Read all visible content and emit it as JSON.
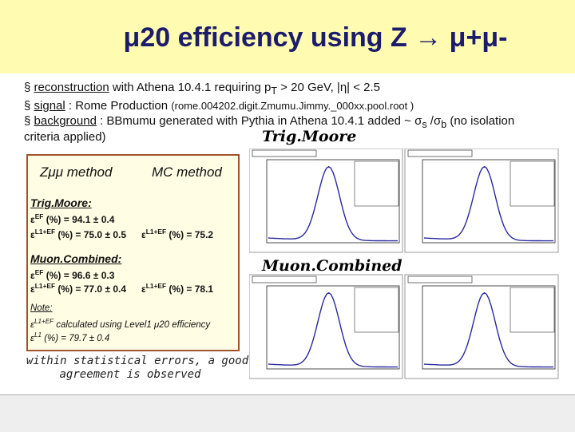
{
  "header": {
    "title": "μ20 efficiency using Z → μ+μ-"
  },
  "bullets": [
    {
      "marker": "§",
      "link": "reconstruction",
      "text": " with Athena 10.4.1 requiring p",
      "sub": "T",
      "rest": " > 20 GeV, |η| < 2.5"
    },
    {
      "marker": "§",
      "link": "signal",
      "text": " : Rome Production ",
      "small": "(rome.004202.digit.Zmumu.Jimmy._000xx.pool.root )"
    },
    {
      "marker": "§",
      "link": "background",
      "text": " : BBmumu generated with Pythia in Athena 10.4.1 added ~ σ",
      "sub": "s",
      "mid": " /σ",
      "sub2": "b",
      "rest": " (no isolation",
      "cont": "criteria applied)"
    }
  ],
  "plot_labels": {
    "top": "Trig.Moore",
    "bottom": "Muon.Combined"
  },
  "box": {
    "col1": "Zμμ method",
    "col2": "MC method",
    "sections": [
      {
        "heading": "Trig.Moore:",
        "rows": [
          {
            "eps": "ε",
            "sup": "EF",
            "text": " (%) = 94.1 ± 0.4"
          },
          {
            "eps": "ε",
            "sup": "L1+EF",
            "text": " (%) = 75.0 ± 0.5",
            "mc_eps": "ε",
            "mc_sup": "L1+EF",
            "mc_text": " (%) = 75.2"
          }
        ]
      },
      {
        "heading": "Muon.Combined:",
        "rows": [
          {
            "eps": "ε",
            "sup": "EF",
            "text": " (%) = 96.6 ± 0.3"
          },
          {
            "eps": "ε",
            "sup": "L1+EF",
            "text": " (%) = 77.0 ± 0.4",
            "mc_eps": "ε",
            "mc_sup": "L1+EF",
            "mc_text": " (%) = 78.1"
          }
        ]
      }
    ],
    "note": {
      "heading": "Note:",
      "line1_eps": "ε",
      "line1_sup": "L1+EF",
      "line1_text": " calculated using Level1 μ20 efficiency",
      "line2_eps": "ε",
      "line2_sup": "L1",
      "line2_text": " (%) = 79.7 ± 0.4"
    }
  },
  "conclusion": [
    "within statistical errors, a good",
    "agreement is observed"
  ]
}
